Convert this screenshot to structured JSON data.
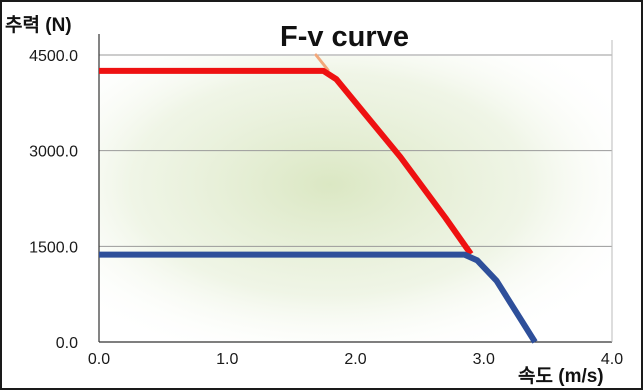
{
  "chart_data": {
    "type": "line",
    "title": "F-v curve",
    "ylabel": "추력 (N)",
    "xlabel": "속도 (m/s)",
    "xlim": [
      0,
      4
    ],
    "ylim": [
      0,
      4500
    ],
    "x_ticks": [
      "0.0",
      "1.0",
      "2.0",
      "3.0",
      "4.0"
    ],
    "x_tick_values": [
      0,
      1,
      2,
      3,
      4
    ],
    "y_ticks": [
      "4500.0",
      "3000.0",
      "1500.0",
      "0.0"
    ],
    "y_tick_values": [
      4500,
      3000,
      1500,
      0
    ],
    "grid": "horizontal",
    "legend": "none",
    "colors": {
      "series_upper": "#ee1111",
      "series_lower": "#2e4f9a",
      "gridline": "#9a9a9a",
      "axis": "#333333",
      "plot_glow": "#dbe8c4",
      "title_highlight": "#f2a77a"
    },
    "series": [
      {
        "x": [
          0.0,
          1.75,
          1.85,
          2.35,
          2.7,
          2.9
        ],
        "y": [
          4250,
          4250,
          4120,
          2900,
          1950,
          1380
        ]
      },
      {
        "x": [
          0.0,
          2.85,
          2.95,
          3.1,
          3.4
        ],
        "y": [
          1370,
          1370,
          1280,
          960,
          0
        ]
      }
    ]
  }
}
